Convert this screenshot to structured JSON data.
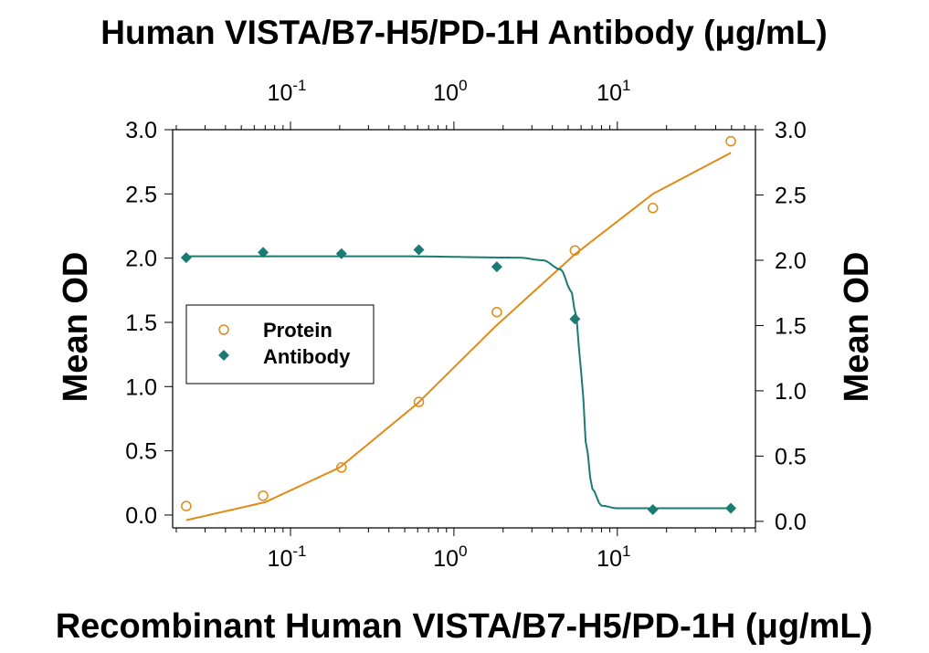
{
  "chart_data": {
    "type": "scatter",
    "title": "Human VISTA/B7-H5/PD-1H Antibody (μg/mL)",
    "xlabel": "Recombinant Human VISTA/B7-H5/PD-1H (μg/mL)",
    "ylabel_left": "Mean OD",
    "ylabel_right": "Mean OD",
    "x_scale": "log",
    "xlim": [
      0.019,
      70
    ],
    "x_ticks": [
      {
        "value": 0.1,
        "base": "10",
        "exp": "-1"
      },
      {
        "value": 1,
        "base": "10",
        "exp": "0"
      },
      {
        "value": 10,
        "base": "10",
        "exp": "1"
      }
    ],
    "ylim_left": [
      -0.1,
      3.0
    ],
    "y_ticks_left": [
      "0.0",
      "0.5",
      "1.0",
      "1.5",
      "2.0",
      "2.5",
      "3.0"
    ],
    "ylim_right": [
      -0.05,
      3.0
    ],
    "y_ticks_right": [
      "0.0",
      "0.5",
      "1.0",
      "1.5",
      "2.0",
      "2.5",
      "3.0"
    ],
    "grid": false,
    "legend_position": "middle-left",
    "series": [
      {
        "name": "Protein",
        "axis": "bottom-left",
        "marker": "open-circle",
        "color": "#e08a17",
        "x": [
          0.023,
          0.068,
          0.205,
          0.61,
          1.83,
          5.5,
          16.5,
          49.5
        ],
        "y": [
          0.07,
          0.15,
          0.37,
          0.88,
          1.58,
          2.06,
          2.39,
          2.91
        ],
        "fit_curve": {
          "x": [
            0.023,
            0.07,
            0.2,
            0.6,
            1.8,
            5.5,
            16.5,
            49.5
          ],
          "y": [
            -0.04,
            0.1,
            0.37,
            0.87,
            1.47,
            2.03,
            2.5,
            2.82
          ]
        }
      },
      {
        "name": "Antibody",
        "axis": "top-right",
        "marker": "filled-diamond",
        "color": "#1a7a74",
        "x": [
          0.023,
          0.068,
          0.205,
          0.61,
          1.83,
          5.5,
          16.5,
          49.5
        ],
        "y": [
          2.02,
          2.06,
          2.05,
          2.08,
          1.95,
          1.55,
          0.09,
          0.1
        ],
        "fit_curve": {
          "x": [
            0.023,
            0.5,
            2.5,
            3.5,
            4.5,
            5.2,
            5.6,
            6.0,
            6.5,
            7.0,
            8.0,
            10.0,
            16.5,
            49.5
          ],
          "y": [
            2.03,
            2.03,
            2.02,
            2.0,
            1.93,
            1.77,
            1.57,
            1.15,
            0.55,
            0.25,
            0.12,
            0.1,
            0.1,
            0.1
          ]
        }
      }
    ],
    "colors": {
      "protein": "#e08a17",
      "antibody": "#1a7a74",
      "axis": "#000000"
    }
  }
}
